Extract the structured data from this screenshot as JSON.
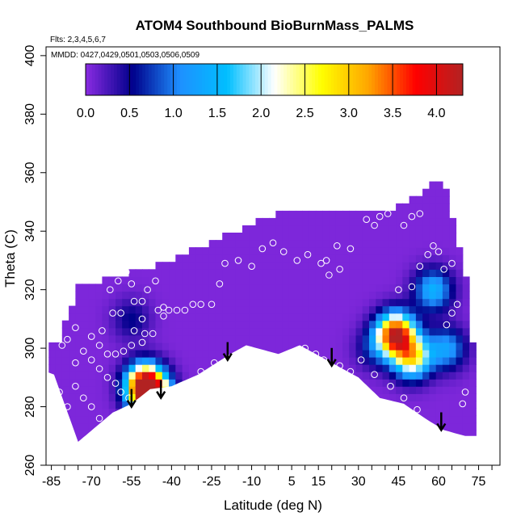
{
  "chart_data": {
    "type": "heatmap",
    "title": "ATOM4 Southbound BioBurnMass_PALMS",
    "flights_text": "Flts: 2,3,4,5,6,7",
    "dates_text": "MMDD: 0427,0429,0501,0503,0506,0509",
    "xlabel": "Latitude (deg N)",
    "ylabel": "Theta (C)",
    "xlim": [
      -87,
      83
    ],
    "ylim": [
      260,
      403
    ],
    "x_ticks": [
      -85,
      -70,
      -55,
      -40,
      -25,
      -10,
      5,
      15,
      30,
      45,
      60,
      75
    ],
    "y_ticks": [
      260,
      280,
      300,
      320,
      340,
      360,
      380,
      400
    ],
    "colorbar": {
      "range": [
        0,
        4.3
      ],
      "ticks": [
        0.0,
        0.5,
        1.0,
        1.5,
        2.0,
        2.5,
        3.0,
        3.5,
        4.0
      ],
      "tick_labels": [
        "0.0",
        "0.5",
        "1.0",
        "1.5",
        "2.0",
        "2.5",
        "3.0",
        "3.5",
        "4.0"
      ],
      "colors": [
        "#8a2be2",
        "#00008b",
        "#1e90ff",
        "#00bfff",
        "#ffffff",
        "#ffff00",
        "#ffa500",
        "#ff0000",
        "#b22222"
      ]
    },
    "background_value": 0.05,
    "plume_centers": [
      {
        "lat": 44,
        "theta": 305,
        "value": 4.0
      },
      {
        "lat": 50,
        "theta": 297,
        "value": 2.6
      },
      {
        "lat": -50,
        "theta": 288,
        "value": 3.2
      },
      {
        "lat": -48,
        "theta": 284,
        "value": 3.6
      },
      {
        "lat": 58,
        "theta": 320,
        "value": 1.4
      },
      {
        "lat": 63,
        "theta": 300,
        "value": 1.2
      },
      {
        "lat": -55,
        "theta": 310,
        "value": 0.5
      },
      {
        "lat": 36,
        "theta": 300,
        "value": 0.6
      }
    ],
    "surface_arrows": [
      {
        "lat": -55,
        "theta": 280
      },
      {
        "lat": -44,
        "theta": 283
      },
      {
        "lat": -19,
        "theta": 296
      },
      {
        "lat": 20,
        "theta": 294
      },
      {
        "lat": 61,
        "theta": 272
      }
    ],
    "observations": [
      [
        -73,
        329
      ],
      [
        -70,
        325
      ],
      [
        -66,
        326
      ],
      [
        -63,
        320
      ],
      [
        -60,
        323
      ],
      [
        -57,
        331
      ],
      [
        -57,
        326
      ],
      [
        -55,
        322
      ],
      [
        -51,
        316
      ],
      [
        -54,
        316
      ],
      [
        -49,
        320
      ],
      [
        -46,
        323
      ],
      [
        -43,
        314
      ],
      [
        -43,
        311
      ],
      [
        -47,
        305
      ],
      [
        -50,
        305
      ],
      [
        -51,
        302
      ],
      [
        -55,
        301
      ],
      [
        -58,
        299
      ],
      [
        -61,
        298
      ],
      [
        -64,
        298
      ],
      [
        -67,
        301
      ],
      [
        -70,
        304
      ],
      [
        -66,
        306
      ],
      [
        -62,
        312
      ],
      [
        -59,
        312
      ],
      [
        -54,
        306
      ],
      [
        -51,
        310
      ],
      [
        -45,
        313
      ],
      [
        -41,
        313
      ],
      [
        -38,
        313
      ],
      [
        -35,
        313
      ],
      [
        -32,
        315
      ],
      [
        -29,
        315
      ],
      [
        -25,
        315
      ],
      [
        -22,
        322
      ],
      [
        -20,
        329
      ],
      [
        -15,
        330
      ],
      [
        -10,
        328
      ],
      [
        -6,
        334
      ],
      [
        -2,
        336
      ],
      [
        2,
        333
      ],
      [
        7,
        330
      ],
      [
        11,
        332
      ],
      [
        16,
        329
      ],
      [
        19,
        325
      ],
      [
        23,
        327
      ],
      [
        18,
        330
      ],
      [
        22,
        335
      ],
      [
        27,
        334
      ],
      [
        33,
        344
      ],
      [
        36,
        342
      ],
      [
        38,
        345
      ],
      [
        41,
        346
      ],
      [
        47,
        342
      ],
      [
        50,
        345
      ],
      [
        53,
        346
      ],
      [
        45,
        320
      ],
      [
        50,
        321
      ],
      [
        53,
        328
      ],
      [
        56,
        332
      ],
      [
        58,
        335
      ],
      [
        60,
        333
      ],
      [
        62,
        327
      ],
      [
        65,
        329
      ],
      [
        -76,
        307
      ],
      [
        -79,
        303
      ],
      [
        -81,
        301
      ],
      [
        -73,
        299
      ],
      [
        -70,
        296
      ],
      [
        -67,
        293
      ],
      [
        -64,
        290
      ],
      [
        -61,
        288
      ],
      [
        -59,
        285
      ],
      [
        -56,
        283
      ],
      [
        -53,
        281
      ],
      [
        -76,
        287
      ],
      [
        -73,
        283
      ],
      [
        -70,
        280
      ],
      [
        -67,
        276
      ],
      [
        -64,
        273
      ],
      [
        -61,
        271
      ],
      [
        -79,
        280
      ],
      [
        -82,
        285
      ],
      [
        -76,
        295
      ],
      [
        31,
        296
      ],
      [
        36,
        291
      ],
      [
        42,
        287
      ],
      [
        47,
        283
      ],
      [
        52,
        279
      ],
      [
        63,
        308
      ],
      [
        65,
        312
      ],
      [
        67,
        315
      ],
      [
        69,
        281
      ],
      [
        70,
        285
      ],
      [
        -29,
        292
      ],
      [
        -24,
        295
      ],
      [
        -31,
        288
      ],
      [
        -36,
        286
      ],
      [
        -41,
        285
      ],
      [
        10,
        300
      ],
      [
        14,
        298
      ],
      [
        17,
        296
      ],
      [
        23,
        294
      ],
      [
        27,
        292
      ]
    ]
  }
}
